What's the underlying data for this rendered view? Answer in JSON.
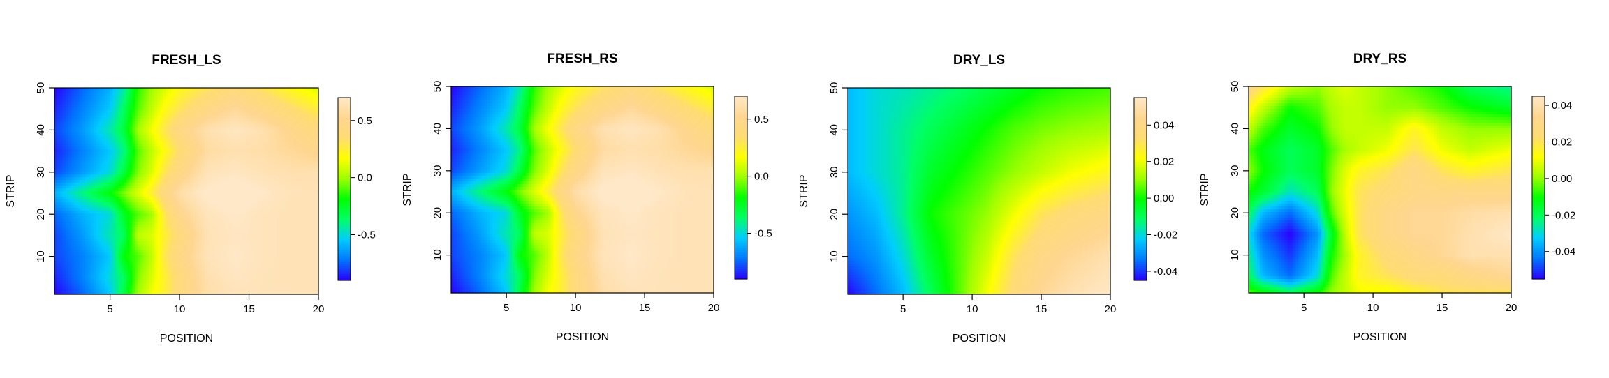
{
  "palette": [
    "#2a00ff",
    "#0077ff",
    "#00ccff",
    "#00ff66",
    "#00ff00",
    "#9cff00",
    "#ffff00",
    "#ffdc73",
    "#ffd690",
    "#ffe8c8"
  ],
  "chart_data": [
    {
      "type": "heatmap",
      "title": "FRESH_LS",
      "xlabel": "POSITION",
      "ylabel": "STRIP",
      "x_ticks": [
        "5",
        "10",
        "15",
        "20"
      ],
      "y_ticks": [
        "10",
        "20",
        "30",
        "40",
        "50"
      ],
      "xlim": [
        1,
        20
      ],
      "ylim": [
        1,
        50
      ],
      "legend_ticks": [
        "0.5",
        "0.0",
        "-0.5"
      ],
      "legend_range": [
        -0.9,
        0.7
      ],
      "surface": {
        "x": [
          1,
          3,
          5,
          6,
          7,
          8,
          9,
          10,
          12,
          14,
          16,
          18,
          20
        ],
        "y": [
          1,
          5,
          10,
          15,
          20,
          25,
          30,
          35,
          40,
          45,
          50
        ],
        "z": [
          [
            -0.9,
            -0.75,
            -0.55,
            -0.3,
            0.0,
            0.15,
            0.25,
            0.4,
            0.6,
            0.65,
            0.65,
            0.65,
            0.65
          ],
          [
            -0.85,
            -0.7,
            -0.5,
            -0.35,
            -0.05,
            0.1,
            0.25,
            0.4,
            0.62,
            0.68,
            0.65,
            0.64,
            0.64
          ],
          [
            -0.8,
            -0.7,
            -0.55,
            -0.2,
            -0.1,
            0.05,
            0.3,
            0.45,
            0.65,
            0.7,
            0.66,
            0.64,
            0.64
          ],
          [
            -0.8,
            -0.65,
            -0.45,
            -0.35,
            0.05,
            0.1,
            0.25,
            0.4,
            0.64,
            0.68,
            0.66,
            0.64,
            0.64
          ],
          [
            -0.75,
            -0.6,
            -0.5,
            -0.25,
            -0.1,
            0.0,
            0.3,
            0.5,
            0.66,
            0.7,
            0.66,
            0.64,
            0.64
          ],
          [
            -0.6,
            -0.4,
            -0.2,
            -0.05,
            0.1,
            0.25,
            0.45,
            0.6,
            0.72,
            0.75,
            0.7,
            0.65,
            0.64
          ],
          [
            -0.8,
            -0.65,
            -0.5,
            -0.3,
            -0.05,
            0.1,
            0.3,
            0.45,
            0.65,
            0.68,
            0.64,
            0.62,
            0.62
          ],
          [
            -0.85,
            -0.7,
            -0.55,
            -0.4,
            -0.1,
            0.05,
            0.2,
            0.35,
            0.58,
            0.62,
            0.6,
            0.55,
            0.5
          ],
          [
            -0.8,
            -0.65,
            -0.45,
            -0.3,
            0.0,
            0.15,
            0.3,
            0.45,
            0.62,
            0.68,
            0.62,
            0.5,
            0.4
          ],
          [
            -0.85,
            -0.7,
            -0.55,
            -0.35,
            -0.1,
            0.05,
            0.2,
            0.3,
            0.45,
            0.55,
            0.45,
            0.35,
            0.25
          ],
          [
            -0.9,
            -0.75,
            -0.6,
            -0.45,
            -0.15,
            0.0,
            0.1,
            0.2,
            0.3,
            0.4,
            0.3,
            0.2,
            0.1
          ]
        ]
      }
    },
    {
      "type": "heatmap",
      "title": "FRESH_RS",
      "xlabel": "POSITION",
      "ylabel": "STRIP",
      "x_ticks": [
        "5",
        "10",
        "15",
        "20"
      ],
      "y_ticks": [
        "10",
        "20",
        "30",
        "40",
        "50"
      ],
      "xlim": [
        1,
        20
      ],
      "ylim": [
        1,
        50
      ],
      "legend_ticks": [
        "0.5",
        "0.0",
        "-0.5"
      ],
      "legend_range": [
        -0.9,
        0.7
      ],
      "surface": {
        "x": [
          1,
          3,
          5,
          6,
          7,
          8,
          9,
          10,
          12,
          14,
          16,
          18,
          20
        ],
        "y": [
          1,
          5,
          10,
          15,
          20,
          25,
          30,
          35,
          40,
          45,
          50
        ],
        "z": [
          [
            -0.9,
            -0.75,
            -0.55,
            -0.3,
            0.0,
            0.15,
            0.25,
            0.4,
            0.6,
            0.65,
            0.65,
            0.65,
            0.65
          ],
          [
            -0.85,
            -0.7,
            -0.5,
            -0.35,
            -0.05,
            0.1,
            0.25,
            0.4,
            0.62,
            0.68,
            0.65,
            0.64,
            0.64
          ],
          [
            -0.8,
            -0.7,
            -0.55,
            -0.2,
            -0.1,
            0.05,
            0.3,
            0.45,
            0.65,
            0.7,
            0.66,
            0.64,
            0.64
          ],
          [
            -0.8,
            -0.65,
            -0.45,
            -0.35,
            0.05,
            0.1,
            0.25,
            0.4,
            0.64,
            0.68,
            0.66,
            0.64,
            0.64
          ],
          [
            -0.75,
            -0.6,
            -0.5,
            -0.25,
            -0.1,
            0.0,
            0.3,
            0.5,
            0.66,
            0.7,
            0.66,
            0.64,
            0.64
          ],
          [
            -0.6,
            -0.4,
            -0.2,
            -0.05,
            0.1,
            0.25,
            0.45,
            0.6,
            0.72,
            0.75,
            0.7,
            0.65,
            0.64
          ],
          [
            -0.8,
            -0.65,
            -0.5,
            -0.3,
            -0.05,
            0.1,
            0.3,
            0.45,
            0.65,
            0.68,
            0.64,
            0.62,
            0.62
          ],
          [
            -0.85,
            -0.7,
            -0.55,
            -0.4,
            -0.1,
            0.05,
            0.2,
            0.35,
            0.58,
            0.62,
            0.6,
            0.55,
            0.5
          ],
          [
            -0.8,
            -0.65,
            -0.45,
            -0.3,
            0.0,
            0.15,
            0.3,
            0.45,
            0.62,
            0.68,
            0.62,
            0.5,
            0.4
          ],
          [
            -0.85,
            -0.7,
            -0.55,
            -0.35,
            -0.1,
            0.05,
            0.2,
            0.3,
            0.45,
            0.55,
            0.45,
            0.35,
            0.25
          ],
          [
            -0.9,
            -0.75,
            -0.6,
            -0.45,
            -0.15,
            0.0,
            0.1,
            0.2,
            0.3,
            0.4,
            0.3,
            0.2,
            0.1
          ]
        ]
      }
    },
    {
      "type": "heatmap",
      "title": "DRY_LS",
      "xlabel": "POSITION",
      "ylabel": "STRIP",
      "x_ticks": [
        "5",
        "10",
        "15",
        "20"
      ],
      "y_ticks": [
        "10",
        "20",
        "30",
        "40",
        "50"
      ],
      "xlim": [
        1,
        20
      ],
      "ylim": [
        1,
        50
      ],
      "legend_ticks": [
        "0.04",
        "0.02",
        "0.00",
        "-0.02",
        "-0.04"
      ],
      "legend_range": [
        -0.045,
        0.055
      ],
      "surface": {
        "x": [
          1,
          3,
          5,
          7,
          9,
          11,
          13,
          15,
          17,
          20
        ],
        "y": [
          1,
          10,
          20,
          30,
          40,
          50
        ],
        "z": [
          [
            -0.045,
            -0.035,
            -0.025,
            -0.01,
            0.005,
            0.02,
            0.035,
            0.045,
            0.05,
            0.055
          ],
          [
            -0.035,
            -0.03,
            -0.02,
            -0.005,
            0.005,
            0.015,
            0.03,
            0.04,
            0.045,
            0.05
          ],
          [
            -0.03,
            -0.025,
            -0.015,
            0.0,
            0.005,
            0.01,
            0.02,
            0.03,
            0.035,
            0.04
          ],
          [
            -0.025,
            -0.02,
            -0.015,
            -0.005,
            0.0,
            0.005,
            0.01,
            0.015,
            0.02,
            0.025
          ],
          [
            -0.025,
            -0.02,
            -0.015,
            -0.01,
            -0.005,
            0.0,
            0.005,
            0.008,
            0.01,
            0.012
          ],
          [
            -0.025,
            -0.02,
            -0.018,
            -0.015,
            -0.012,
            -0.008,
            -0.004,
            0.0,
            0.002,
            0.004
          ]
        ]
      }
    },
    {
      "type": "heatmap",
      "title": "DRY_RS",
      "xlabel": "POSITION",
      "ylabel": "STRIP",
      "x_ticks": [
        "5",
        "10",
        "15",
        "20"
      ],
      "y_ticks": [
        "10",
        "20",
        "30",
        "40",
        "50"
      ],
      "xlim": [
        1,
        20
      ],
      "ylim": [
        1,
        50
      ],
      "legend_ticks": [
        "0.04",
        "0.02",
        "0.00",
        "-0.02",
        "-0.04"
      ],
      "legend_range": [
        -0.055,
        0.045
      ],
      "surface": {
        "x": [
          1,
          2,
          4,
          6,
          7,
          8,
          9,
          11,
          13,
          15,
          17,
          20
        ],
        "y": [
          1,
          5,
          10,
          15,
          20,
          25,
          30,
          35,
          40,
          45,
          50
        ],
        "z": [
          [
            -0.005,
            -0.01,
            -0.02,
            -0.01,
            0.0,
            0.005,
            0.01,
            0.01,
            0.015,
            0.02,
            0.02,
            0.02
          ],
          [
            -0.02,
            -0.035,
            -0.045,
            -0.03,
            -0.005,
            0.005,
            0.015,
            0.02,
            0.025,
            0.025,
            0.03,
            0.035
          ],
          [
            -0.025,
            -0.04,
            -0.05,
            -0.035,
            -0.01,
            0.002,
            0.015,
            0.025,
            0.03,
            0.035,
            0.04,
            0.04
          ],
          [
            -0.03,
            -0.045,
            -0.055,
            -0.04,
            -0.015,
            0.005,
            0.02,
            0.03,
            0.035,
            0.035,
            0.04,
            0.045
          ],
          [
            -0.02,
            -0.035,
            -0.045,
            -0.03,
            -0.005,
            0.008,
            0.02,
            0.03,
            0.035,
            0.035,
            0.038,
            0.04
          ],
          [
            -0.01,
            -0.015,
            -0.028,
            -0.02,
            0.0,
            0.01,
            0.02,
            0.025,
            0.03,
            0.03,
            0.03,
            0.03
          ],
          [
            0.0,
            -0.01,
            -0.02,
            -0.015,
            -0.002,
            0.008,
            0.015,
            0.02,
            0.03,
            0.02,
            0.015,
            0.02
          ],
          [
            -0.005,
            -0.012,
            -0.02,
            -0.015,
            -0.005,
            0.002,
            0.005,
            0.01,
            0.02,
            0.01,
            0.005,
            0.01
          ],
          [
            0.005,
            -0.005,
            -0.015,
            -0.01,
            0.0,
            0.005,
            0.005,
            0.005,
            0.015,
            0.005,
            0.0,
            0.0
          ],
          [
            0.015,
            0.005,
            -0.01,
            -0.005,
            0.002,
            0.005,
            0.005,
            0.0,
            0.0,
            -0.005,
            -0.01,
            -0.015
          ],
          [
            0.03,
            0.02,
            0.005,
            0.0,
            0.005,
            0.008,
            0.005,
            0.0,
            -0.005,
            -0.01,
            -0.02,
            -0.025
          ]
        ]
      }
    }
  ]
}
